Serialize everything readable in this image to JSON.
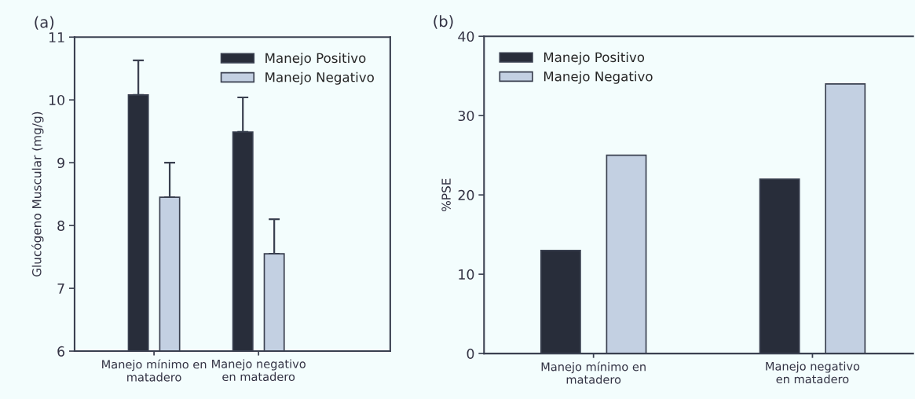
{
  "chart_data": [
    {
      "type": "bar",
      "title": "(a)",
      "ylabel": "Glucógeno Muscular (mg/g)",
      "categories": [
        "Manejo mínimo en\nmatadero",
        "Manejo negativo\nen matadero"
      ],
      "ylim": [
        6,
        11
      ],
      "yticks": [
        6,
        7,
        8,
        9,
        10,
        11
      ],
      "legend": "top right",
      "grid": false,
      "series": [
        {
          "name": "Manejo Positivo",
          "color": "#282d3a",
          "values": [
            10.08,
            9.49
          ],
          "errors": [
            [
              10.08,
              10.63
            ],
            [
              9.49,
              10.04
            ]
          ]
        },
        {
          "name": "Manejo Negativo",
          "color": "#c3d0e2",
          "values": [
            8.45,
            7.55
          ],
          "errors": [
            [
              8.45,
              9.0
            ],
            [
              7.55,
              8.1
            ]
          ]
        }
      ]
    },
    {
      "type": "bar",
      "title": "(b)",
      "ylabel": "%PSE",
      "categories": [
        "Manejo mínimo en\nmatadero",
        "Manejo negativo\nen matadero"
      ],
      "ylim": [
        0,
        40
      ],
      "yticks": [
        0,
        10,
        20,
        30,
        40
      ],
      "legend": "top left",
      "grid": false,
      "series": [
        {
          "name": "Manejo Positivo",
          "color": "#282d3a",
          "values": [
            13,
            22
          ]
        },
        {
          "name": "Manejo Negativo",
          "color": "#c3d0e2",
          "values": [
            25,
            34
          ]
        }
      ]
    }
  ]
}
